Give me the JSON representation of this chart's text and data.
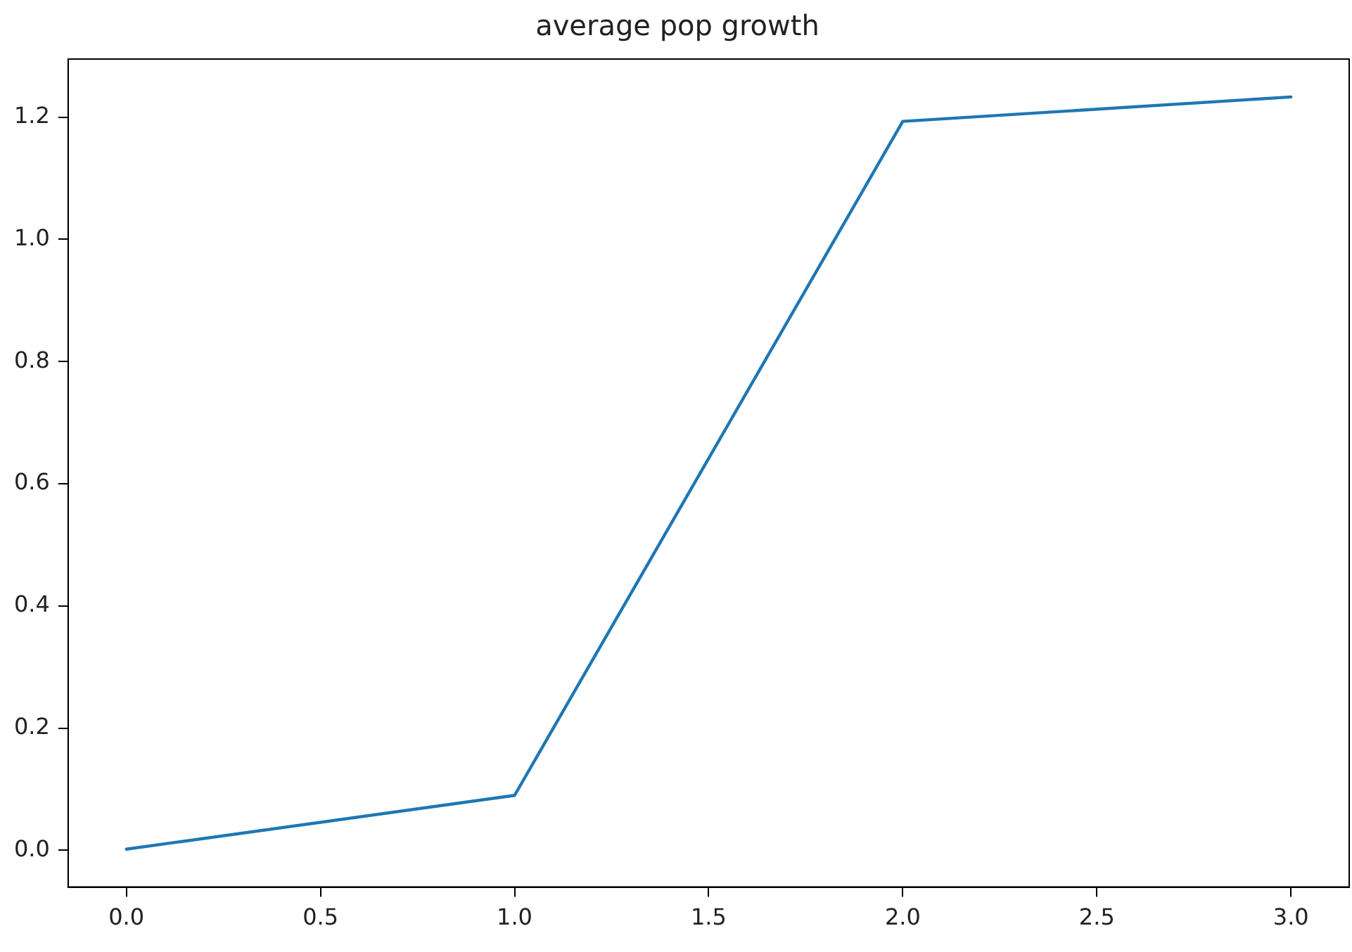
{
  "chart_data": {
    "type": "line",
    "title": "average pop growth",
    "x": [
      0,
      1,
      2,
      3
    ],
    "series": [
      {
        "color": "#1f77b4",
        "values": [
          0.002,
          0.09,
          1.193,
          1.233
        ]
      }
    ],
    "xlim": [
      -0.15,
      3.15
    ],
    "xticks": [
      {
        "value": 0,
        "label": "0.0"
      },
      {
        "value": 0.5,
        "label": "0.5"
      },
      {
        "value": 1,
        "label": "1.0"
      },
      {
        "value": 1.5,
        "label": "1.5"
      },
      {
        "value": 2,
        "label": "2.0"
      },
      {
        "value": 2.5,
        "label": "2.5"
      },
      {
        "value": 3,
        "label": "3.0"
      }
    ],
    "ylim": [
      -0.06,
      1.295
    ],
    "yticks": [
      {
        "value": 0,
        "label": "0.0"
      },
      {
        "value": 0.2,
        "label": "0.2"
      },
      {
        "value": 0.4,
        "label": "0.4"
      },
      {
        "value": 0.6,
        "label": "0.6"
      },
      {
        "value": 0.8,
        "label": "0.8"
      },
      {
        "value": 1,
        "label": "1.0"
      },
      {
        "value": 1.2,
        "label": "1.2"
      }
    ],
    "grid": false,
    "legend": false,
    "marker": "none",
    "line_style": "solid"
  }
}
